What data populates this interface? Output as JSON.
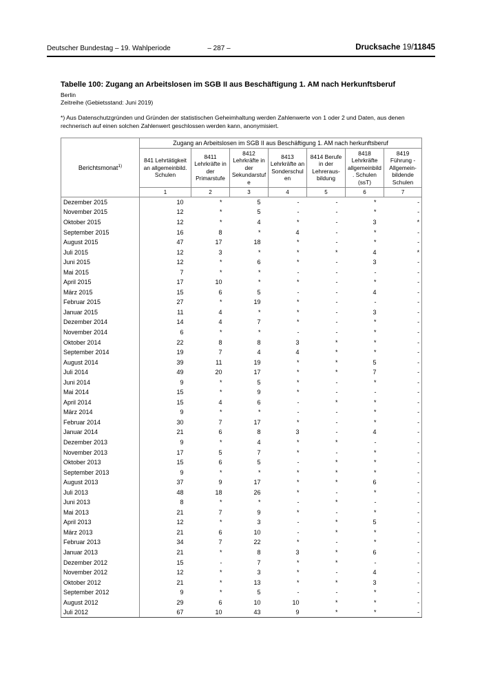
{
  "page_header": {
    "left": "Deutscher Bundestag – 19. Wahlperiode",
    "center": "– 287 –",
    "doc_label": "Drucksache ",
    "doc_prefix": "19/",
    "doc_number": "11845"
  },
  "title": "Tabelle 100: Zugang an Arbeitslosen im SGB II aus Beschäftigung 1. AM nach Herkunftsberuf",
  "region": "Berlin",
  "series_note": "Zeitreihe (Gebietsstand: Juni 2019)",
  "footnote": "*) Aus Datenschutzgründen und Gründen der statistischen Geheimhaltung werden Zahlenwerte von 1 oder 2 und Daten, aus denen rechnerisch auf einen solchen Zahlenwert geschlossen werden kann, anonymisiert.",
  "table": {
    "row_header": {
      "label": "Berichtsmonat",
      "footnote_ref": "1)"
    },
    "span_header": "Zugang an Arbeitslosen im SGB II aus Beschäftigung 1. AM nach herkunftsberuf",
    "columns": [
      "841 Lehrtätigkeit an allgemeinbild. Schulen",
      "8411 Lehrkräfte in der Primarstufe",
      "8412 Lehrkräfte in der Sekundarstufe",
      "8413 Lehrkräfte an Sonderschulen",
      "8414 Berufe in der Lehreraus­bildung",
      "8418 Lehrkräfte allgemeinbild. Schulen (ssT)",
      "8419 Führung - Allgemein­bildende Schulen"
    ],
    "column_numbers": [
      "1",
      "2",
      "3",
      "4",
      "5",
      "6",
      "7"
    ],
    "rows": [
      {
        "month": "Dezember 2015",
        "values": [
          "10",
          "*",
          "5",
          "-",
          "-",
          "*",
          "-"
        ]
      },
      {
        "month": "November 2015",
        "values": [
          "12",
          "*",
          "5",
          "-",
          "-",
          "*",
          "-"
        ]
      },
      {
        "month": "Oktober 2015",
        "values": [
          "12",
          "*",
          "4",
          "*",
          "-",
          "3",
          "*"
        ]
      },
      {
        "month": "September 2015",
        "values": [
          "16",
          "8",
          "*",
          "4",
          "-",
          "*",
          "-"
        ]
      },
      {
        "month": "August 2015",
        "values": [
          "47",
          "17",
          "18",
          "*",
          "-",
          "*",
          "-"
        ]
      },
      {
        "month": "Juli 2015",
        "values": [
          "12",
          "3",
          "*",
          "*",
          "*",
          "4",
          "*"
        ]
      },
      {
        "month": "Juni 2015",
        "values": [
          "12",
          "*",
          "6",
          "*",
          "-",
          "3",
          "-"
        ]
      },
      {
        "month": "Mai 2015",
        "values": [
          "7",
          "*",
          "*",
          "-",
          "-",
          "-",
          "-"
        ]
      },
      {
        "month": "April 2015",
        "values": [
          "17",
          "10",
          "*",
          "*",
          "-",
          "*",
          "-"
        ]
      },
      {
        "month": "März 2015",
        "values": [
          "15",
          "6",
          "5",
          "-",
          "-",
          "4",
          "-"
        ]
      },
      {
        "month": "Februar 2015",
        "values": [
          "27",
          "*",
          "19",
          "*",
          "-",
          "-",
          "-"
        ]
      },
      {
        "month": "Januar 2015",
        "values": [
          "11",
          "4",
          "*",
          "*",
          "-",
          "3",
          "-"
        ]
      },
      {
        "month": "Dezember 2014",
        "values": [
          "14",
          "4",
          "7",
          "*",
          "-",
          "*",
          "-"
        ]
      },
      {
        "month": "November 2014",
        "values": [
          "6",
          "*",
          "*",
          "-",
          "-",
          "*",
          "-"
        ]
      },
      {
        "month": "Oktober 2014",
        "values": [
          "22",
          "8",
          "8",
          "3",
          "*",
          "*",
          "-"
        ]
      },
      {
        "month": "September 2014",
        "values": [
          "19",
          "7",
          "4",
          "4",
          "*",
          "*",
          "-"
        ]
      },
      {
        "month": "August 2014",
        "values": [
          "39",
          "11",
          "19",
          "*",
          "*",
          "5",
          "-"
        ]
      },
      {
        "month": "Juli 2014",
        "values": [
          "49",
          "20",
          "17",
          "*",
          "*",
          "7",
          "-"
        ]
      },
      {
        "month": "Juni 2014",
        "values": [
          "9",
          "*",
          "5",
          "*",
          "-",
          "*",
          "-"
        ]
      },
      {
        "month": "Mai 2014",
        "values": [
          "15",
          "*",
          "9",
          "*",
          "-",
          "-",
          "-"
        ]
      },
      {
        "month": "April 2014",
        "values": [
          "15",
          "4",
          "6",
          "-",
          "*",
          "*",
          "-"
        ]
      },
      {
        "month": "März 2014",
        "values": [
          "9",
          "*",
          "*",
          "-",
          "-",
          "*",
          "-"
        ]
      },
      {
        "month": "Februar 2014",
        "values": [
          "30",
          "7",
          "17",
          "*",
          "-",
          "*",
          "-"
        ]
      },
      {
        "month": "Januar 2014",
        "values": [
          "21",
          "6",
          "8",
          "3",
          "-",
          "4",
          "-"
        ]
      },
      {
        "month": "Dezember 2013",
        "values": [
          "9",
          "*",
          "4",
          "*",
          "*",
          "-",
          "-"
        ]
      },
      {
        "month": "November 2013",
        "values": [
          "17",
          "5",
          "7",
          "*",
          "-",
          "*",
          "-"
        ]
      },
      {
        "month": "Oktober 2013",
        "values": [
          "15",
          "6",
          "5",
          "-",
          "*",
          "*",
          "-"
        ]
      },
      {
        "month": "September 2013",
        "values": [
          "9",
          "*",
          "*",
          "*",
          "*",
          "*",
          "-"
        ]
      },
      {
        "month": "August 2013",
        "values": [
          "37",
          "9",
          "17",
          "*",
          "*",
          "6",
          "-"
        ]
      },
      {
        "month": "Juli 2013",
        "values": [
          "48",
          "18",
          "26",
          "*",
          "-",
          "*",
          "-"
        ]
      },
      {
        "month": "Juni 2013",
        "values": [
          "8",
          "*",
          "*",
          "-",
          "*",
          "-",
          "-"
        ]
      },
      {
        "month": "Mai 2013",
        "values": [
          "21",
          "7",
          "9",
          "*",
          "-",
          "*",
          "-"
        ]
      },
      {
        "month": "April 2013",
        "values": [
          "12",
          "*",
          "3",
          "-",
          "*",
          "5",
          "-"
        ]
      },
      {
        "month": "März 2013",
        "values": [
          "21",
          "6",
          "10",
          "-",
          "*",
          "*",
          "-"
        ]
      },
      {
        "month": "Februar 2013",
        "values": [
          "34",
          "7",
          "22",
          "*",
          "-",
          "*",
          "-"
        ]
      },
      {
        "month": "Januar 2013",
        "values": [
          "21",
          "*",
          "8",
          "3",
          "*",
          "6",
          "-"
        ]
      },
      {
        "month": "Dezember 2012",
        "values": [
          "15",
          "-",
          "7",
          "*",
          "*",
          "-",
          "-"
        ]
      },
      {
        "month": "November 2012",
        "values": [
          "12",
          "*",
          "3",
          "*",
          "-",
          "4",
          "-"
        ]
      },
      {
        "month": "Oktober 2012",
        "values": [
          "21",
          "*",
          "13",
          "*",
          "*",
          "3",
          "-"
        ]
      },
      {
        "month": "September 2012",
        "values": [
          "9",
          "*",
          "5",
          "-",
          "-",
          "*",
          "-"
        ]
      },
      {
        "month": "August 2012",
        "values": [
          "29",
          "6",
          "10",
          "10",
          "*",
          "*",
          "-"
        ]
      },
      {
        "month": "Juli 2012",
        "values": [
          "67",
          "10",
          "43",
          "9",
          "*",
          "*",
          "-"
        ]
      }
    ]
  }
}
